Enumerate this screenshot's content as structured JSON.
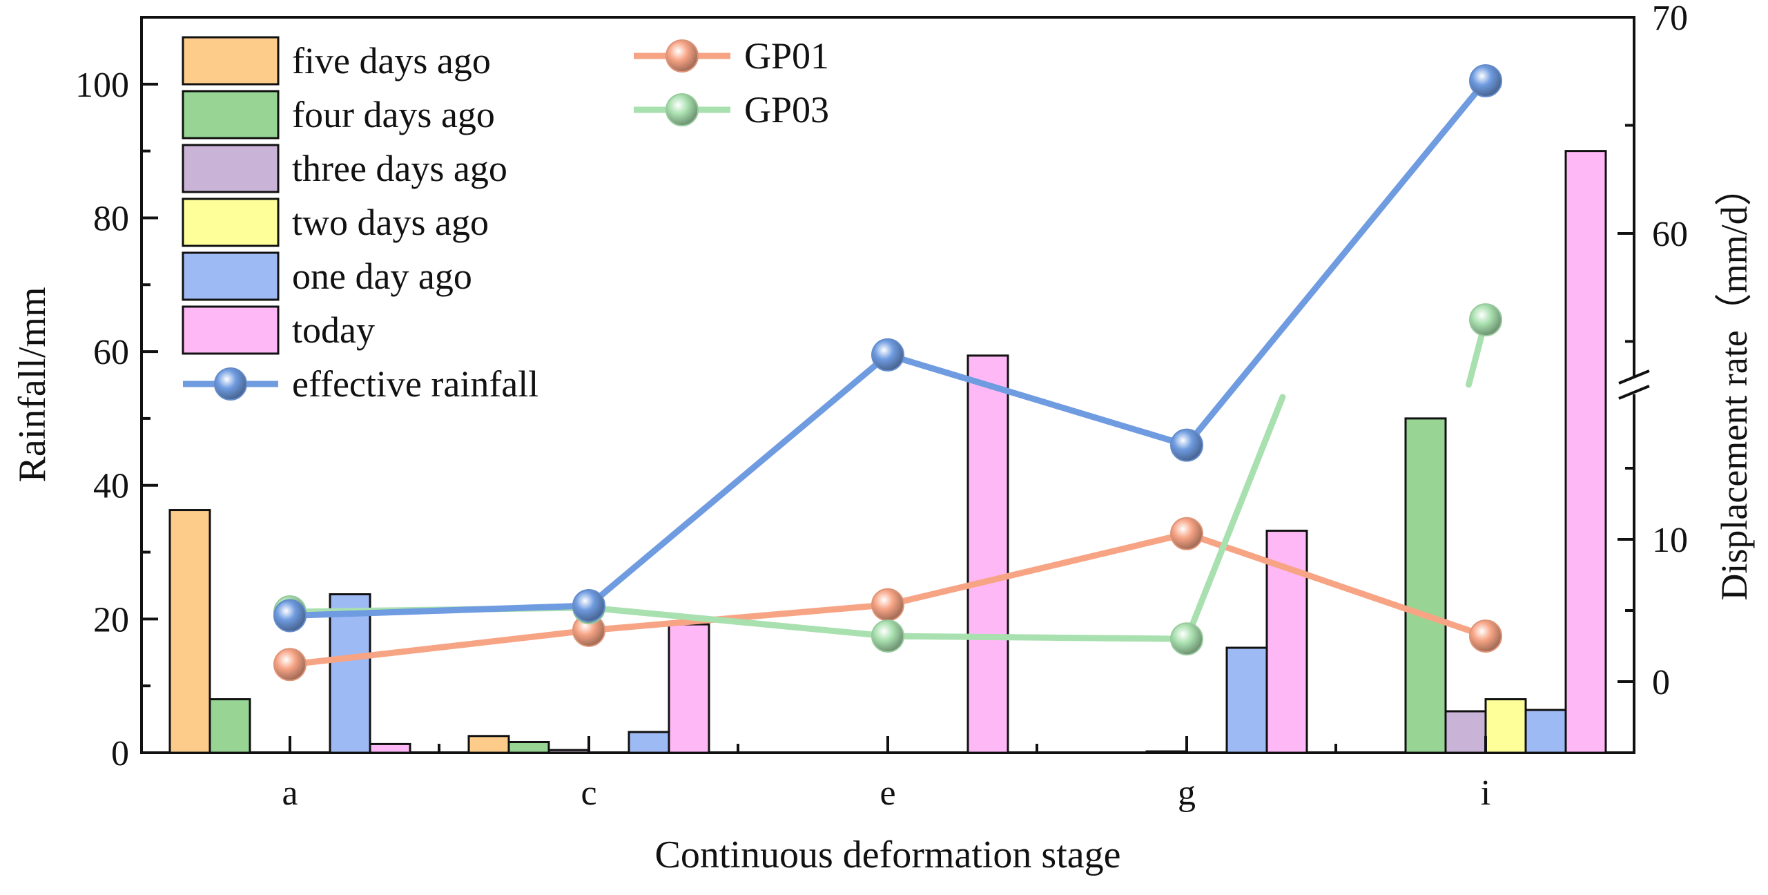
{
  "chart_data": {
    "type": "bar",
    "xlabel": "Continuous deformation stage",
    "ylabel": "Rainfall/mm",
    "y2label": "Displacement rate（mm/d）",
    "categories": [
      "a",
      "c",
      "e",
      "g",
      "i"
    ],
    "ylim": [
      0,
      110
    ],
    "yticks": [
      "0",
      "20",
      "40",
      "60",
      "80",
      "100"
    ],
    "y2_lower_range": [
      -5,
      20
    ],
    "y2_upper_range": [
      53,
      70
    ],
    "y2_lower_ticks": [
      "0",
      "10"
    ],
    "y2_upper_ticks": [
      "60",
      "70"
    ],
    "bar_series": [
      {
        "name": "five days ago",
        "color": "#FDCC8A",
        "values": [
          36.3,
          2.5,
          0,
          0,
          0
        ]
      },
      {
        "name": "four days ago",
        "color": "#98D594",
        "values": [
          8.0,
          1.6,
          0,
          0,
          50.0
        ]
      },
      {
        "name": "three days ago",
        "color": "#C9B3D6",
        "values": [
          0,
          0.4,
          0,
          0.2,
          6.2
        ]
      },
      {
        "name": "two days ago",
        "color": "#FFFF99",
        "values": [
          0,
          0,
          0,
          0,
          8.0
        ]
      },
      {
        "name": "one day ago",
        "color": "#9EBAF4",
        "values": [
          23.7,
          3.1,
          0,
          15.7,
          6.4
        ]
      },
      {
        "name": "today",
        "color": "#FFB8F6",
        "values": [
          1.3,
          19.2,
          59.4,
          33.2,
          90.0
        ]
      }
    ],
    "line_series": [
      {
        "name": "effective rainfall",
        "axis": "left",
        "color": "#6F9BE0",
        "values": [
          20.5,
          22.0,
          59.5,
          46.0,
          100.5
        ]
      },
      {
        "name": "GP01",
        "axis": "right",
        "color": "#F7A485",
        "values": [
          1.2,
          3.6,
          5.4,
          10.4,
          3.2
        ]
      },
      {
        "name": "GP03",
        "axis": "right",
        "color": "#A9E0AF",
        "values": [
          4.9,
          5.2,
          3.2,
          3.0,
          56.0
        ]
      }
    ]
  }
}
